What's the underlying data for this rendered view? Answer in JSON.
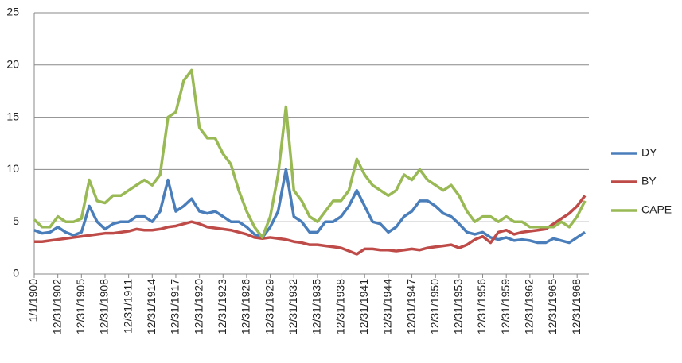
{
  "chart_data": {
    "type": "line",
    "x": [
      1900,
      1901,
      1902,
      1903,
      1904,
      1905,
      1906,
      1907,
      1908,
      1909,
      1910,
      1911,
      1912,
      1913,
      1914,
      1915,
      1916,
      1917,
      1918,
      1919,
      1920,
      1921,
      1922,
      1923,
      1924,
      1925,
      1926,
      1927,
      1928,
      1929,
      1930,
      1931,
      1932,
      1933,
      1934,
      1935,
      1936,
      1937,
      1938,
      1939,
      1940,
      1941,
      1942,
      1943,
      1944,
      1945,
      1946,
      1947,
      1948,
      1949,
      1950,
      1951,
      1952,
      1953,
      1954,
      1955,
      1956,
      1957,
      1958,
      1959,
      1960,
      1961,
      1962,
      1963,
      1964,
      1965,
      1966,
      1967,
      1968,
      1969,
      1970
    ],
    "series": [
      {
        "name": "DY",
        "color": "#4a7ebb",
        "values": [
          4.2,
          3.9,
          4.0,
          4.5,
          4.0,
          3.7,
          4.0,
          6.5,
          5.0,
          4.3,
          4.8,
          5.0,
          5.0,
          5.5,
          5.5,
          5.0,
          6.0,
          9.0,
          6.0,
          6.5,
          7.2,
          6.0,
          5.8,
          6.0,
          5.5,
          5.0,
          5.0,
          4.5,
          3.8,
          3.5,
          4.5,
          6.0,
          10.0,
          5.5,
          5.0,
          4.0,
          4.0,
          5.0,
          5.0,
          5.5,
          6.5,
          8.0,
          6.5,
          5.0,
          4.8,
          4.0,
          4.5,
          5.5,
          6.0,
          7.0,
          7.0,
          6.5,
          5.8,
          5.5,
          4.8,
          4.0,
          3.8,
          4.0,
          3.5,
          3.3,
          3.5,
          3.2,
          3.3,
          3.2,
          3.0,
          3.0,
          3.4,
          3.2,
          3.0,
          3.5,
          4.0
        ]
      },
      {
        "name": "BY",
        "color": "#be4b48",
        "values": [
          3.1,
          3.1,
          3.2,
          3.3,
          3.4,
          3.5,
          3.6,
          3.7,
          3.8,
          3.9,
          3.9,
          4.0,
          4.1,
          4.3,
          4.2,
          4.2,
          4.3,
          4.5,
          4.6,
          4.8,
          5.0,
          4.8,
          4.5,
          4.4,
          4.3,
          4.2,
          4.0,
          3.8,
          3.5,
          3.4,
          3.5,
          3.4,
          3.3,
          3.1,
          3.0,
          2.8,
          2.8,
          2.7,
          2.6,
          2.5,
          2.2,
          1.9,
          2.4,
          2.4,
          2.3,
          2.3,
          2.2,
          2.3,
          2.4,
          2.3,
          2.5,
          2.6,
          2.7,
          2.8,
          2.5,
          2.8,
          3.3,
          3.6,
          3.0,
          4.0,
          4.2,
          3.8,
          4.0,
          4.1,
          4.2,
          4.3,
          4.8,
          5.3,
          5.8,
          6.5,
          7.5
        ]
      },
      {
        "name": "CAPE",
        "color": "#98b954",
        "values": [
          5.2,
          4.5,
          4.5,
          5.5,
          5.0,
          5.0,
          5.3,
          9.0,
          7.0,
          6.8,
          7.5,
          7.5,
          8.0,
          8.5,
          9.0,
          8.5,
          9.5,
          15.0,
          15.5,
          18.5,
          19.5,
          14.0,
          13.0,
          13.0,
          11.5,
          10.5,
          8.0,
          6.0,
          4.5,
          3.5,
          5.5,
          9.5,
          16.0,
          8.0,
          7.0,
          5.5,
          5.0,
          6.0,
          7.0,
          7.0,
          8.0,
          11.0,
          9.5,
          8.5,
          8.0,
          7.5,
          8.0,
          9.5,
          9.0,
          10.0,
          9.0,
          8.5,
          8.0,
          8.5,
          7.5,
          6.0,
          5.0,
          5.5,
          5.5,
          5.0,
          5.5,
          5.0,
          5.0,
          4.5,
          4.5,
          4.5,
          4.5,
          5.0,
          4.5,
          5.5,
          7.0
        ]
      }
    ],
    "xlim": [
      1900,
      1970.5
    ],
    "xticks": [
      {
        "value": 1900,
        "label": "1/1/1900"
      },
      {
        "value": 1903,
        "label": "12/31/1902"
      },
      {
        "value": 1906,
        "label": "12/31/1905"
      },
      {
        "value": 1909,
        "label": "12/31/1908"
      },
      {
        "value": 1912,
        "label": "12/31/1911"
      },
      {
        "value": 1915,
        "label": "12/31/1914"
      },
      {
        "value": 1918,
        "label": "12/31/1917"
      },
      {
        "value": 1921,
        "label": "12/31/1920"
      },
      {
        "value": 1924,
        "label": "12/31/1923"
      },
      {
        "value": 1927,
        "label": "12/31/1926"
      },
      {
        "value": 1930,
        "label": "12/31/1929"
      },
      {
        "value": 1933,
        "label": "12/31/1932"
      },
      {
        "value": 1936,
        "label": "12/31/1935"
      },
      {
        "value": 1939,
        "label": "12/31/1938"
      },
      {
        "value": 1942,
        "label": "12/31/1941"
      },
      {
        "value": 1945,
        "label": "12/31/1944"
      },
      {
        "value": 1948,
        "label": "12/31/1947"
      },
      {
        "value": 1951,
        "label": "12/31/1950"
      },
      {
        "value": 1954,
        "label": "12/31/1953"
      },
      {
        "value": 1957,
        "label": "12/31/1956"
      },
      {
        "value": 1960,
        "label": "12/31/1959"
      },
      {
        "value": 1963,
        "label": "12/31/1962"
      },
      {
        "value": 1966,
        "label": "12/31/1965"
      },
      {
        "value": 1969,
        "label": "12/31/1968"
      }
    ],
    "ylim": [
      0,
      25
    ],
    "yticks": [
      0,
      5,
      10,
      15,
      20,
      25
    ],
    "grid": true,
    "legend": "right"
  }
}
